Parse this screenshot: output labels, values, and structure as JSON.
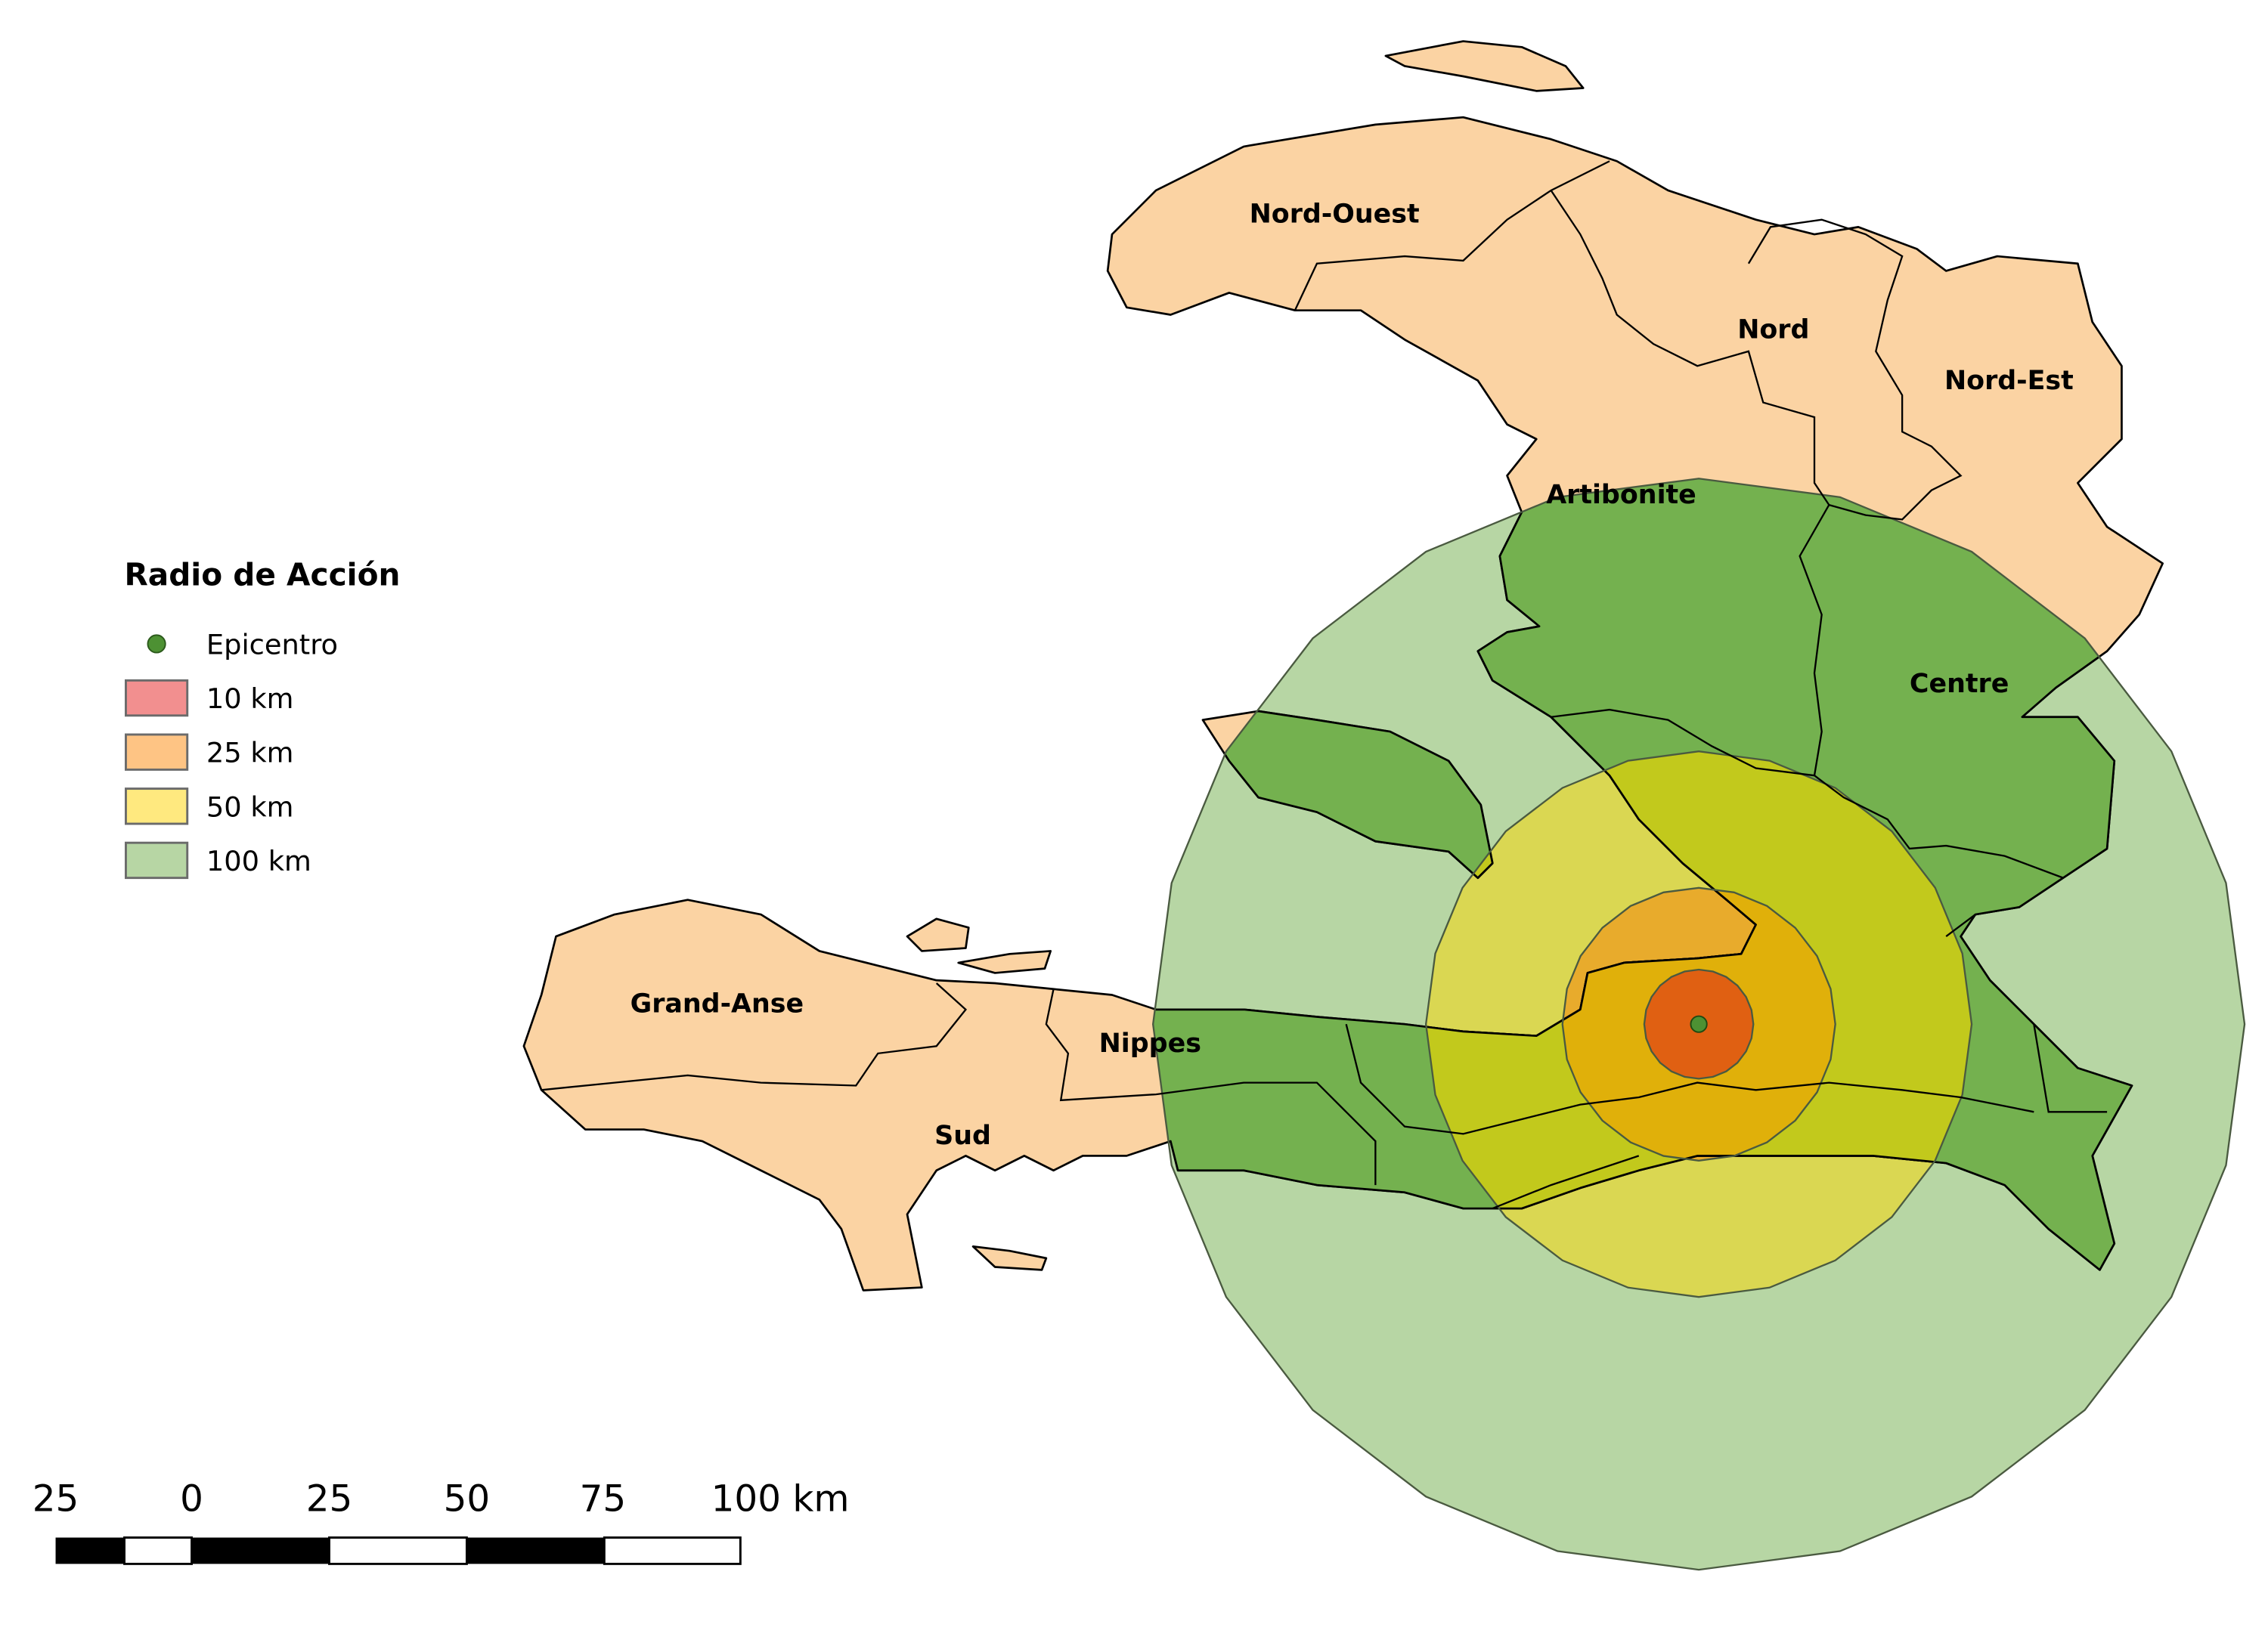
{
  "legend": {
    "title": "Radio de Acción",
    "items": [
      {
        "label": "Epicentro",
        "type": "point",
        "color": "#4d9133"
      },
      {
        "label": "10 km",
        "type": "area",
        "color": "#f28f8f",
        "radius_km": 10,
        "map_fill": "#e36517",
        "map_fill_land": "#e06012"
      },
      {
        "label": "25 km",
        "type": "area",
        "color": "#fec484",
        "radius_km": 25,
        "map_fill": "#e8ab2c",
        "map_fill_land": "#e0b00a"
      },
      {
        "label": "50 km",
        "type": "area",
        "color": "#ffe97f",
        "radius_km": 50,
        "map_fill": "#dad752",
        "map_fill_land": "#c2c91c"
      },
      {
        "label": "100 km",
        "type": "area",
        "color": "#b7d6a4",
        "radius_km": 100,
        "map_fill": "#b7d6a4",
        "map_fill_land": "#74b14f"
      }
    ]
  },
  "map": {
    "land_color": "#fbd3a3",
    "regions": [
      {
        "name": "Nord-Ouest"
      },
      {
        "name": "Nord"
      },
      {
        "name": "Nord-Est"
      },
      {
        "name": "Artibonite"
      },
      {
        "name": "Centre"
      },
      {
        "name": "Grand-Anse"
      },
      {
        "name": "Nippes"
      },
      {
        "name": "Sud"
      }
    ]
  },
  "scale_bar": {
    "labels": [
      "25",
      "0",
      "25",
      "50",
      "75",
      "100 km"
    ]
  }
}
